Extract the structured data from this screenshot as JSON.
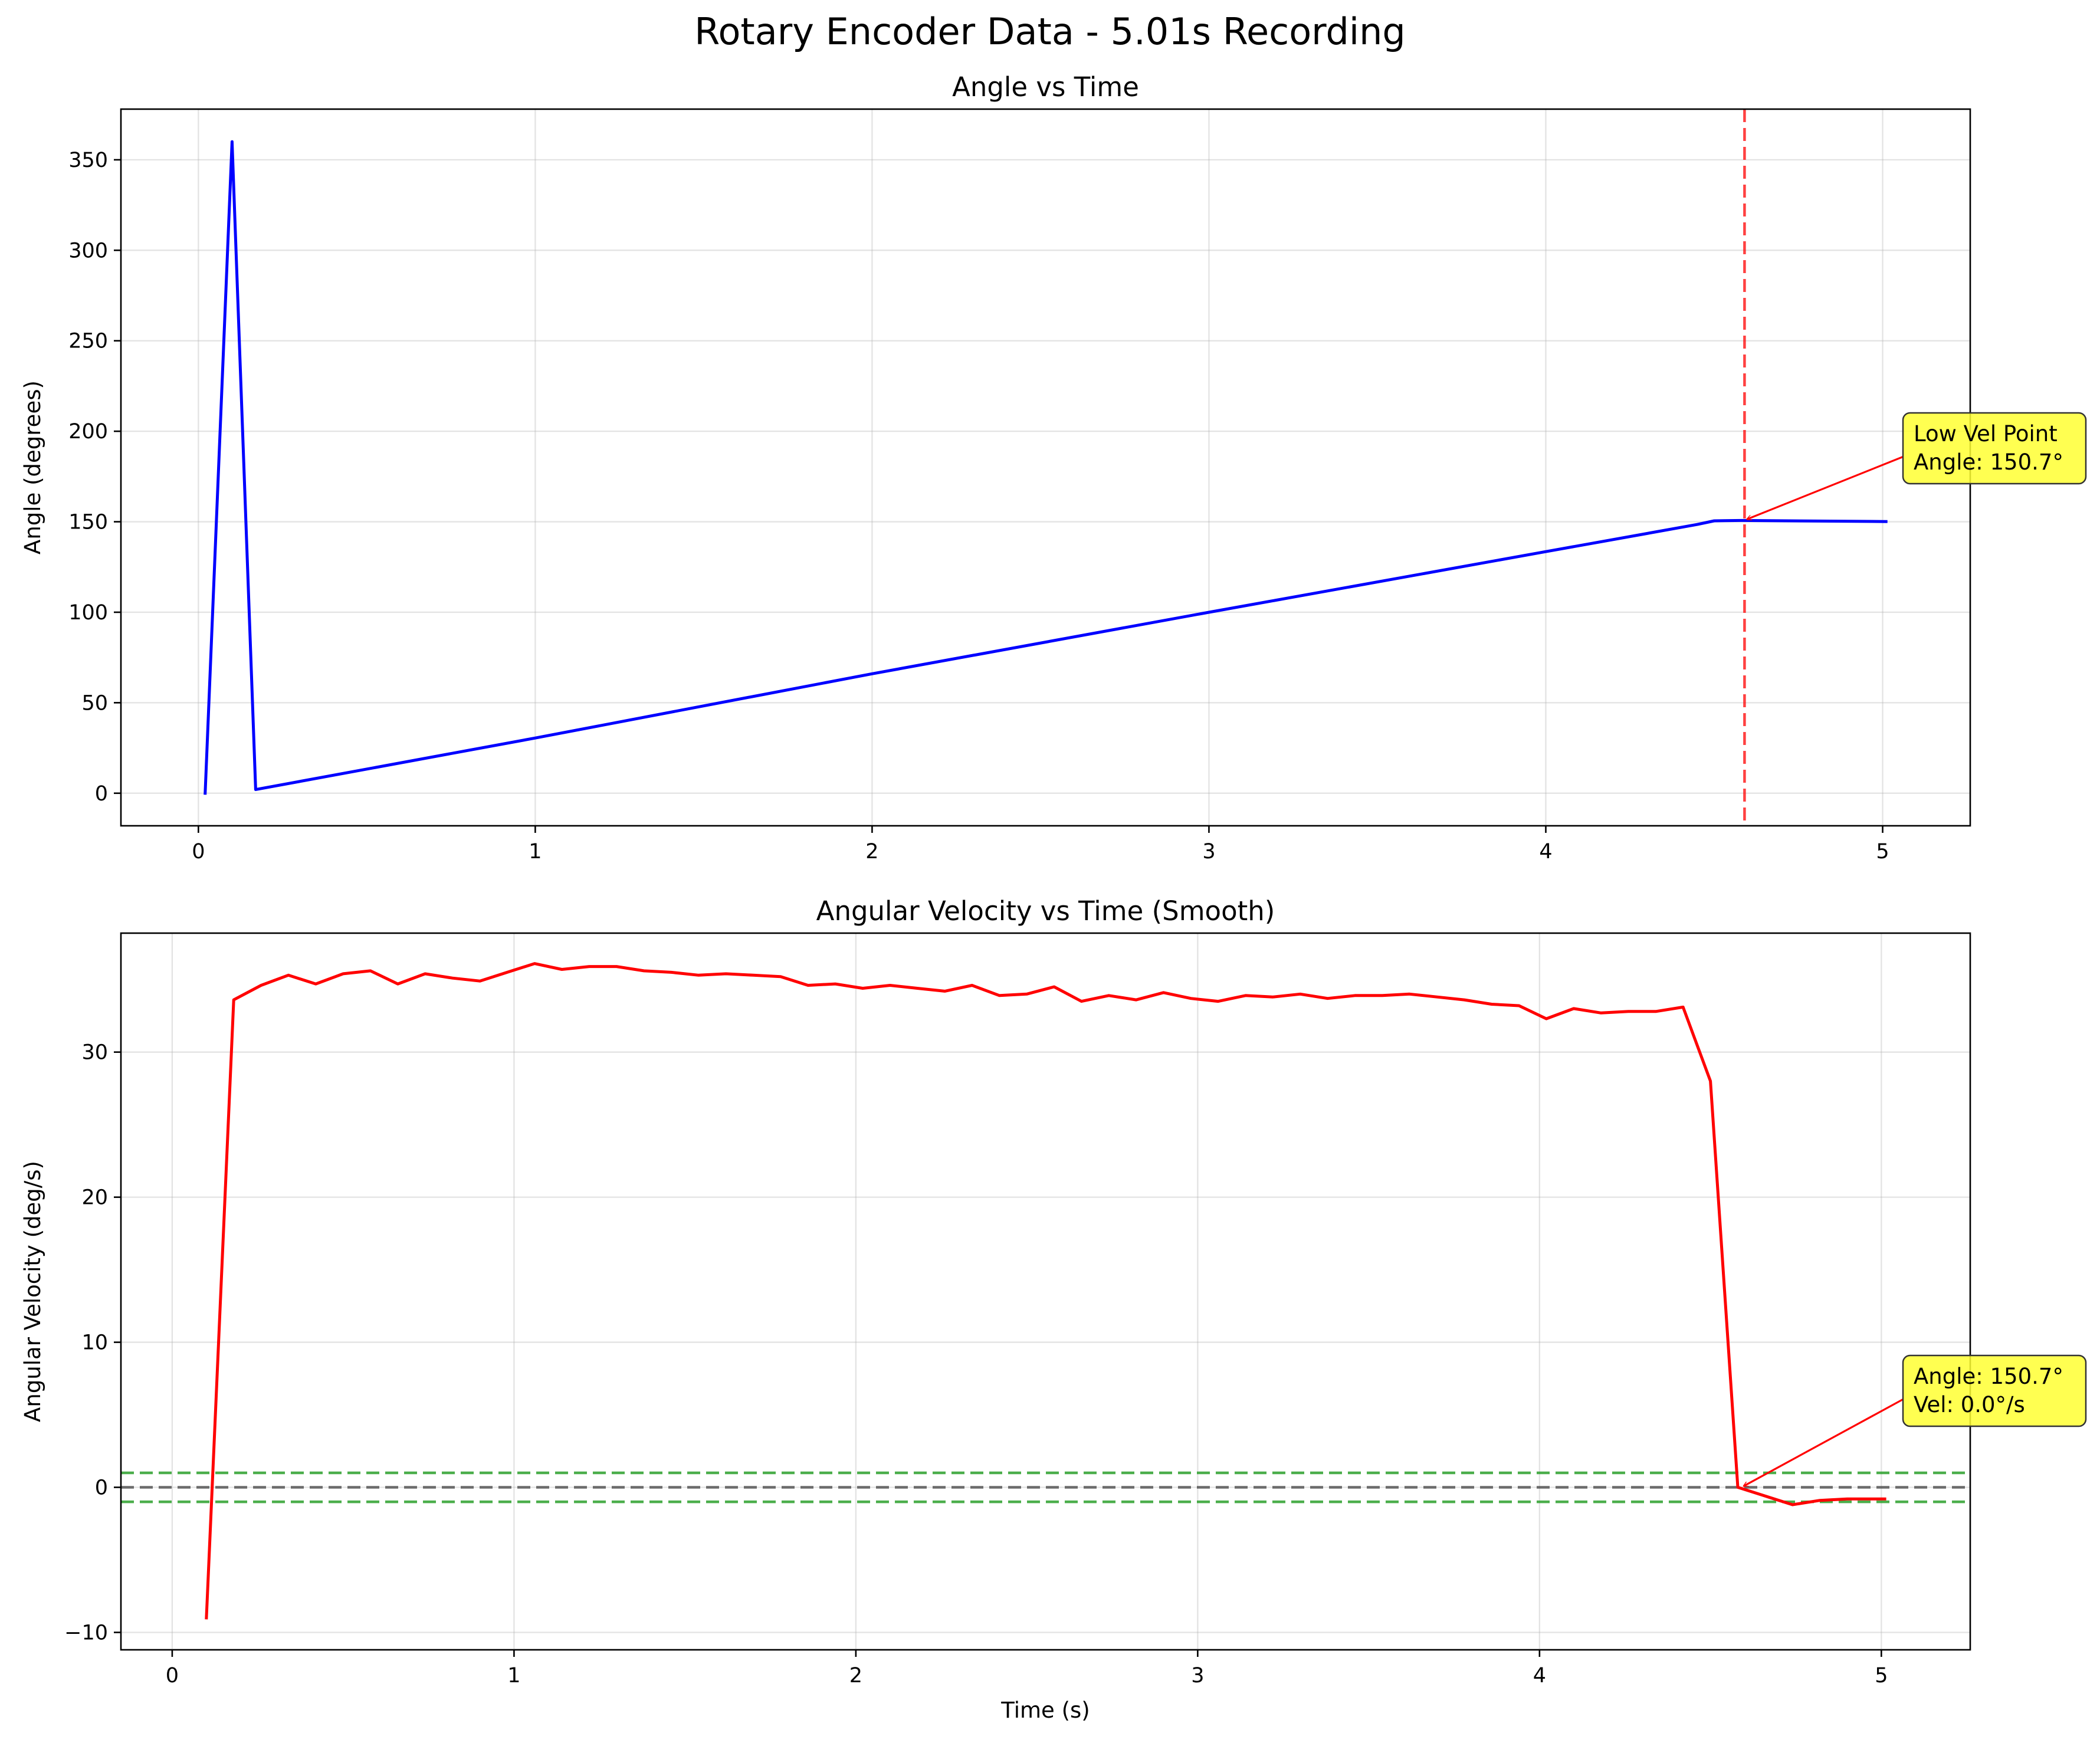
{
  "figure": {
    "suptitle": "Rotary Encoder Data - 5.01s Recording"
  },
  "chart_data": [
    {
      "type": "line",
      "title": "Angle vs Time",
      "xlabel": "",
      "ylabel": "Angle (degrees)",
      "xlim": [
        -0.23,
        5.26
      ],
      "ylim": [
        -18,
        378
      ],
      "xticks": [
        0,
        1,
        2,
        3,
        4,
        5
      ],
      "yticks": [
        0,
        50,
        100,
        150,
        200,
        250,
        300,
        350
      ],
      "grid": true,
      "series": [
        {
          "color": "#0000ff",
          "x": [
            0.02,
            0.1,
            0.17,
            1.0,
            2.0,
            3.0,
            4.0,
            4.45,
            4.5,
            4.58,
            5.01
          ],
          "y": [
            0,
            360,
            2,
            30.5,
            66,
            100,
            133.5,
            148.5,
            150.5,
            150.7,
            150.1
          ]
        }
      ],
      "vlines": [
        {
          "x": 4.59,
          "color": "#ff0000",
          "style": "dashed"
        }
      ],
      "annotations": [
        {
          "lines": [
            "Low Vel Point",
            "Angle: 150.7°"
          ],
          "point": [
            4.59,
            150.7
          ],
          "box_color": "#ffff33",
          "arrow_color": "#ff0000"
        }
      ]
    },
    {
      "type": "line",
      "title": "Angular Velocity vs Time (Smooth)",
      "xlabel": "Time (s)",
      "ylabel": "Angular Velocity (deg/s)",
      "xlim": [
        -0.15,
        5.26
      ],
      "ylim": [
        -11.2,
        38.2
      ],
      "xticks": [
        0,
        1,
        2,
        3,
        4,
        5
      ],
      "yticks": [
        -10,
        0,
        10,
        20,
        30
      ],
      "grid": true,
      "series": [
        {
          "color": "#ff0000",
          "x": [
            0.1,
            0.18,
            0.26,
            0.34,
            0.42,
            0.5,
            0.58,
            0.66,
            0.74,
            0.82,
            0.9,
            0.98,
            1.06,
            1.14,
            1.22,
            1.3,
            1.38,
            1.46,
            1.54,
            1.62,
            1.7,
            1.78,
            1.86,
            1.94,
            2.02,
            2.1,
            2.18,
            2.26,
            2.34,
            2.42,
            2.5,
            2.58,
            2.66,
            2.74,
            2.82,
            2.9,
            2.98,
            3.06,
            3.14,
            3.22,
            3.3,
            3.38,
            3.46,
            3.54,
            3.62,
            3.7,
            3.78,
            3.86,
            3.94,
            4.02,
            4.1,
            4.18,
            4.26,
            4.34,
            4.42,
            4.5,
            4.58,
            4.66,
            4.74,
            4.82,
            4.9,
            4.98,
            5.01
          ],
          "y": [
            -9.0,
            33.6,
            34.6,
            35.3,
            34.7,
            35.4,
            35.6,
            34.7,
            35.4,
            35.1,
            34.9,
            35.5,
            36.1,
            35.7,
            35.9,
            35.9,
            35.6,
            35.5,
            35.3,
            35.4,
            35.3,
            35.2,
            34.6,
            34.7,
            34.4,
            34.6,
            34.4,
            34.2,
            34.6,
            33.9,
            34.0,
            34.5,
            33.5,
            33.9,
            33.6,
            34.1,
            33.7,
            33.5,
            33.9,
            33.8,
            34.0,
            33.7,
            33.9,
            33.9,
            34.0,
            33.8,
            33.6,
            33.3,
            33.2,
            32.3,
            33.0,
            32.7,
            32.8,
            32.8,
            33.1,
            28.0,
            0.0,
            -0.6,
            -1.2,
            -0.9,
            -0.8,
            -0.8,
            -0.8
          ]
        }
      ],
      "hlines": [
        {
          "y": 0,
          "color": "#555555",
          "style": "dashed"
        },
        {
          "y": 1,
          "color": "#2ca02c",
          "style": "dashed"
        },
        {
          "y": -1,
          "color": "#2ca02c",
          "style": "dashed"
        }
      ],
      "annotations": [
        {
          "lines": [
            "Angle: 150.7°",
            "Vel: 0.0°/s"
          ],
          "point": [
            4.59,
            0.0
          ],
          "box_color": "#ffff33",
          "arrow_color": "#ff0000"
        }
      ]
    }
  ]
}
